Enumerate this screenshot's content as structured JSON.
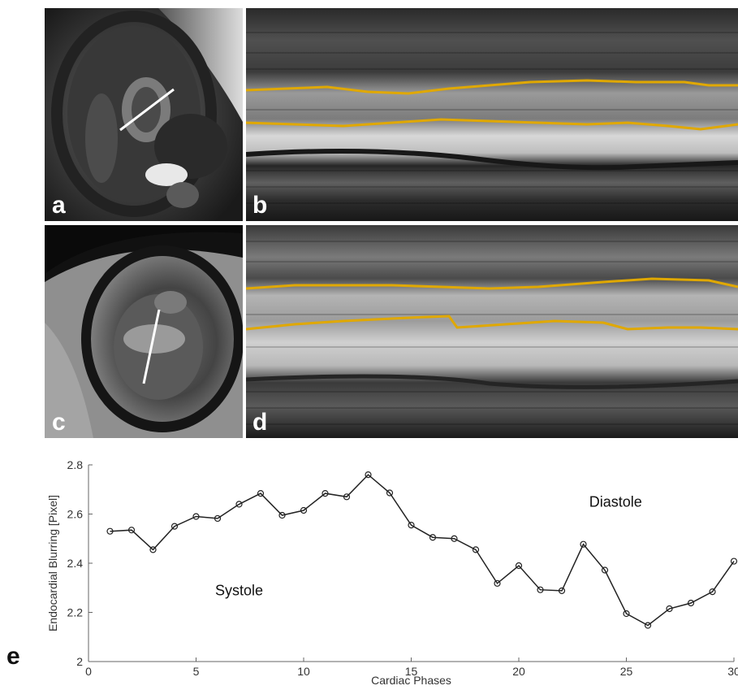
{
  "panels": {
    "a": "a",
    "b": "b",
    "c": "c",
    "d": "d",
    "e": "e"
  },
  "colors": {
    "contour": "#e0a800",
    "cut_line": "#ffffff",
    "series": "#222222"
  },
  "chart_data": {
    "type": "line",
    "xlabel": "Cardiac Phases",
    "ylabel": "Endocardial Blurring [Pixel]",
    "xlim": [
      0,
      30
    ],
    "ylim": [
      2,
      2.8
    ],
    "xticks": [
      0,
      5,
      10,
      15,
      20,
      25,
      30
    ],
    "yticks": [
      2,
      2.2,
      2.4,
      2.6,
      2.8
    ],
    "x": [
      1,
      2,
      3,
      4,
      5,
      6,
      7,
      8,
      9,
      10,
      11,
      12,
      13,
      14,
      15,
      16,
      17,
      18,
      19,
      20,
      21,
      22,
      23,
      24,
      25,
      26,
      27,
      28,
      29,
      30
    ],
    "y": [
      2.53,
      2.535,
      2.455,
      2.55,
      2.59,
      2.582,
      2.64,
      2.684,
      2.595,
      2.615,
      2.684,
      2.67,
      2.76,
      2.686,
      2.555,
      2.505,
      2.5,
      2.455,
      2.318,
      2.39,
      2.292,
      2.288,
      2.477,
      2.372,
      2.195,
      2.147,
      2.215,
      2.238,
      2.284,
      2.408
    ],
    "marker": "circle",
    "grid": false,
    "annotations": [
      {
        "text": "Systole",
        "x": 7,
        "y": 2.27
      },
      {
        "text": "Diastole",
        "x": 24.5,
        "y": 2.63
      }
    ]
  }
}
